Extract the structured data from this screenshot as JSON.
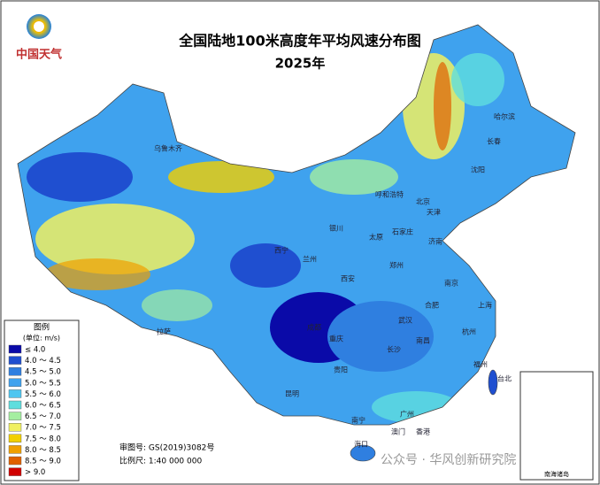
{
  "logo": "中国天气",
  "title": "全国陆地100米高度年平均风速分布图",
  "subtitle": "2025年",
  "legend": {
    "title": "图例",
    "unit": "(单位: m/s)",
    "items": [
      {
        "label": "≤ 4.0",
        "color": "#0a0aa8"
      },
      {
        "label": "4.0 ～ 4.5",
        "color": "#1f4fd0"
      },
      {
        "label": "4.5 ～ 5.0",
        "color": "#2f7fe0"
      },
      {
        "label": "5.0 ～ 5.5",
        "color": "#3fa2ee"
      },
      {
        "label": "5.5 ～ 6.0",
        "color": "#4fc6f0"
      },
      {
        "label": "6.0 ～ 6.5",
        "color": "#5fdede"
      },
      {
        "label": "6.5 ～ 7.0",
        "color": "#a4eea0"
      },
      {
        "label": "7.0 ～ 7.5",
        "color": "#f0f060"
      },
      {
        "label": "7.5 ～ 8.0",
        "color": "#f2d000"
      },
      {
        "label": "8.0 ～ 8.5",
        "color": "#f0a000"
      },
      {
        "label": "8.5 ～ 9.0",
        "color": "#e06000"
      },
      {
        "label": "> 9.0",
        "color": "#d00000"
      }
    ]
  },
  "review_number": "审图号: GS(2019)3082号",
  "scale": "比例尺: 1:40 000 000",
  "inset_label": "南海诸岛",
  "watermark": "公众号 · 华风创新研究院",
  "cities": [
    "乌鲁木齐",
    "哈尔滨",
    "长春",
    "沈阳",
    "呼和浩特",
    "北京",
    "天津",
    "石家庄",
    "太原",
    "济南",
    "银川",
    "西宁",
    "兰州",
    "郑州",
    "西安",
    "南京",
    "上海",
    "合肥",
    "武汉",
    "杭州",
    "成都",
    "重庆",
    "长沙",
    "南昌",
    "福州",
    "台北",
    "贵阳",
    "昆明",
    "南宁",
    "广州",
    "澳门",
    "香港",
    "拉萨",
    "海口"
  ]
}
